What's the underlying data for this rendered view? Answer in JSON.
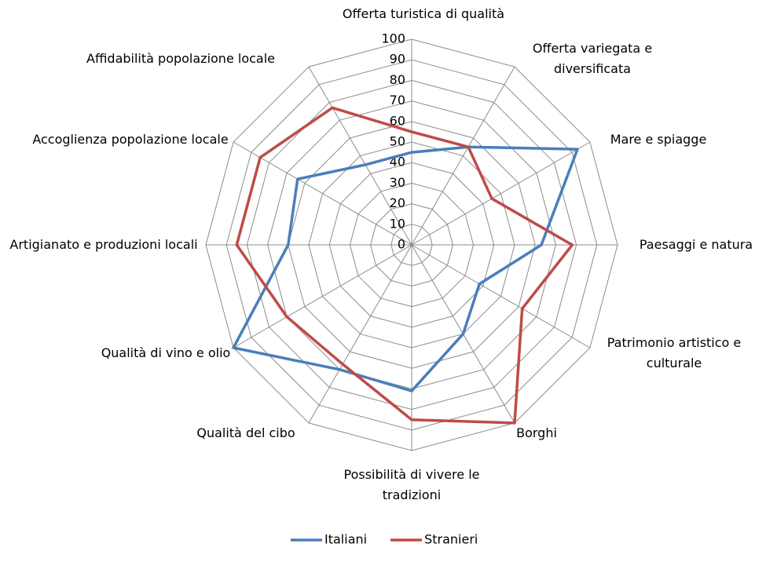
{
  "chart_data": {
    "type": "radar",
    "categories": [
      "Offerta turistica di qualità",
      "Offerta variegata e diversificata",
      "Mare e spiagge",
      "Paesaggi e natura",
      "Patrimonio artistico e culturale",
      "Borghi",
      "Possibilità di vivere le tradizioni",
      "Qualità del cibo",
      "Qualità di vino e olio",
      "Artigianato e produzioni locali",
      "Accoglienza popolazione locale",
      "Affidabilità popolazione locale"
    ],
    "series": [
      {
        "name": "Italiani",
        "color": "#4a7ebb",
        "values": [
          45,
          55,
          93,
          63,
          38,
          50,
          71,
          70,
          100,
          60,
          64,
          45
        ]
      },
      {
        "name": "Stranieri",
        "color": "#be4b48",
        "values": [
          55,
          55,
          45,
          78,
          62,
          100,
          85,
          67,
          70,
          85,
          85,
          77
        ]
      }
    ],
    "ylim": [
      0,
      100
    ],
    "yticks": [
      0,
      10,
      20,
      30,
      40,
      50,
      60,
      70,
      80,
      90,
      100
    ],
    "grid": true,
    "legend": "bottom"
  }
}
